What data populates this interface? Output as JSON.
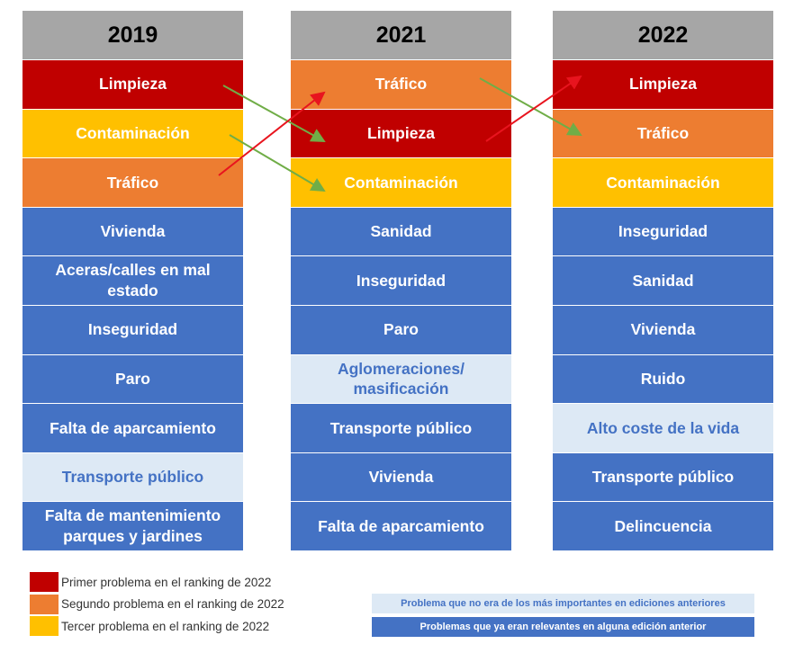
{
  "columns": [
    {
      "year": "2019",
      "items": [
        {
          "label": "Limpieza",
          "color": "#c00000",
          "text_color": "#ffffff"
        },
        {
          "label": "Contaminación",
          "color": "#ffc000",
          "text_color": "#ffffff"
        },
        {
          "label": "Tráfico",
          "color": "#ed7d31",
          "text_color": "#ffffff"
        },
        {
          "label": "Vivienda",
          "color": "#4472c4",
          "text_color": "#ffffff"
        },
        {
          "label": "Aceras/calles en mal estado",
          "color": "#4472c4",
          "text_color": "#ffffff"
        },
        {
          "label": "Inseguridad",
          "color": "#4472c4",
          "text_color": "#ffffff"
        },
        {
          "label": "Paro",
          "color": "#4472c4",
          "text_color": "#ffffff"
        },
        {
          "label": "Falta de aparcamiento",
          "color": "#4472c4",
          "text_color": "#ffffff"
        },
        {
          "label": "Transporte público",
          "color": "#dde9f5",
          "text_color": "#4472c4"
        },
        {
          "label": "Falta de mantenimiento parques y jardines",
          "color": "#4472c4",
          "text_color": "#ffffff"
        }
      ]
    },
    {
      "year": "2021",
      "items": [
        {
          "label": "Tráfico",
          "color": "#ed7d31",
          "text_color": "#ffffff"
        },
        {
          "label": "Limpieza",
          "color": "#c00000",
          "text_color": "#ffffff"
        },
        {
          "label": "Contaminación",
          "color": "#ffc000",
          "text_color": "#ffffff"
        },
        {
          "label": "Sanidad",
          "color": "#4472c4",
          "text_color": "#ffffff"
        },
        {
          "label": "Inseguridad",
          "color": "#4472c4",
          "text_color": "#ffffff"
        },
        {
          "label": "Paro",
          "color": "#4472c4",
          "text_color": "#ffffff"
        },
        {
          "label": "Aglomeraciones/ masificación",
          "color": "#dde9f5",
          "text_color": "#4472c4"
        },
        {
          "label": "Transporte público",
          "color": "#4472c4",
          "text_color": "#ffffff"
        },
        {
          "label": "Vivienda",
          "color": "#4472c4",
          "text_color": "#ffffff"
        },
        {
          "label": "Falta de aparcamiento",
          "color": "#4472c4",
          "text_color": "#ffffff"
        }
      ]
    },
    {
      "year": "2022",
      "items": [
        {
          "label": "Limpieza",
          "color": "#c00000",
          "text_color": "#ffffff"
        },
        {
          "label": "Tráfico",
          "color": "#ed7d31",
          "text_color": "#ffffff"
        },
        {
          "label": "Contaminación",
          "color": "#ffc000",
          "text_color": "#ffffff"
        },
        {
          "label": "Inseguridad",
          "color": "#4472c4",
          "text_color": "#ffffff"
        },
        {
          "label": "Sanidad",
          "color": "#4472c4",
          "text_color": "#ffffff"
        },
        {
          "label": "Vivienda",
          "color": "#4472c4",
          "text_color": "#ffffff"
        },
        {
          "label": "Ruido",
          "color": "#4472c4",
          "text_color": "#ffffff"
        },
        {
          "label": "Alto coste de la vida",
          "color": "#dde9f5",
          "text_color": "#4472c4"
        },
        {
          "label": "Transporte público",
          "color": "#4472c4",
          "text_color": "#ffffff"
        },
        {
          "label": "Delincuencia",
          "color": "#4472c4",
          "text_color": "#ffffff"
        }
      ]
    }
  ],
  "legend_left": [
    {
      "label": "Primer problema en el ranking de 2022",
      "color": "#c00000"
    },
    {
      "label": "Segundo problema en el ranking de 2022",
      "color": "#ed7d31"
    },
    {
      "label": "Tercer problema en el ranking de 2022",
      "color": "#ffc000"
    }
  ],
  "legend_right": [
    {
      "label": "Problema que no era de los más importantes en ediciones anteriores",
      "color": "#dde9f5",
      "text_color": "#4472c4"
    },
    {
      "label": "Problemas que ya eran relevantes en alguna edición anterior",
      "color": "#4472c4",
      "text_color": "#ffffff"
    }
  ]
}
